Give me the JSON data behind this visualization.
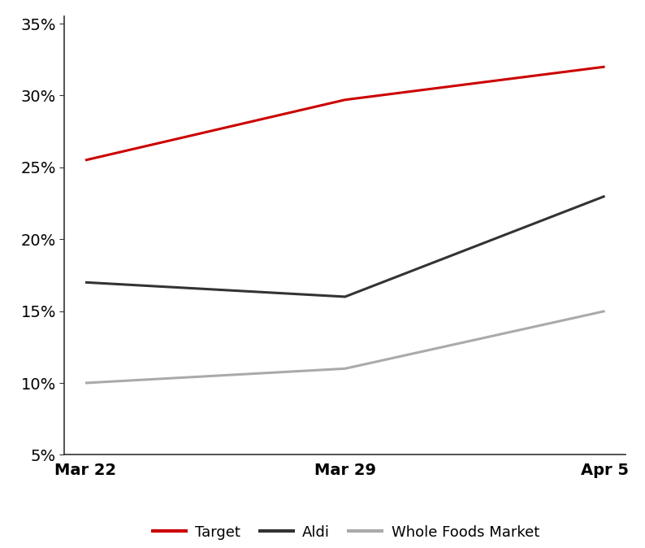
{
  "x_labels": [
    "Mar 22",
    "Mar 29",
    "Apr 5"
  ],
  "x_values": [
    0,
    1,
    2
  ],
  "series": [
    {
      "name": "Target",
      "values": [
        0.255,
        0.297,
        0.32
      ],
      "color": "#CC0000",
      "linewidth": 2.2
    },
    {
      "name": "Aldi",
      "values": [
        0.17,
        0.16,
        0.23
      ],
      "color": "#333333",
      "linewidth": 2.2
    },
    {
      "name": "Whole Foods Market",
      "values": [
        0.1,
        0.11,
        0.15
      ],
      "color": "#AAAAAA",
      "linewidth": 2.2
    }
  ],
  "ylim": [
    0.05,
    0.355
  ],
  "yticks": [
    0.05,
    0.1,
    0.15,
    0.2,
    0.25,
    0.3,
    0.35
  ],
  "background_color": "#FFFFFF",
  "legend_ncol": 3,
  "spine_color": "#333333",
  "tick_fontsize": 14,
  "legend_fontsize": 13
}
